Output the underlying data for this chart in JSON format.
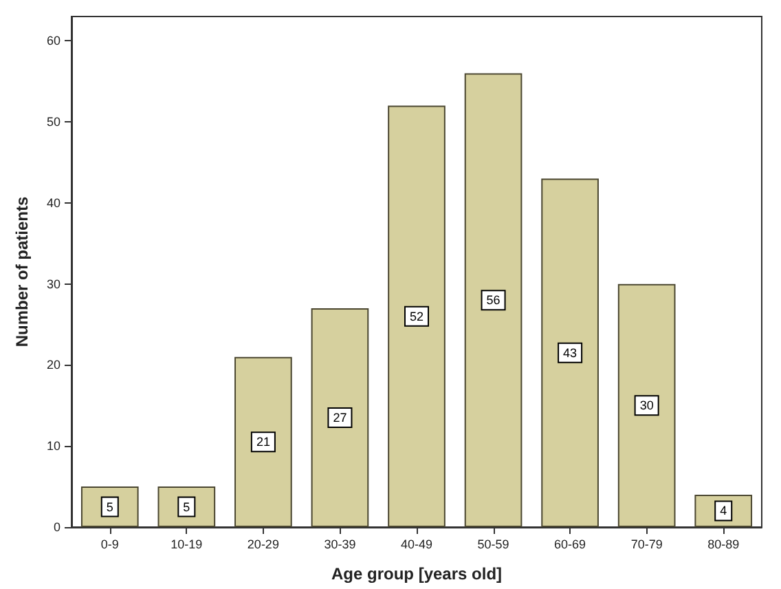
{
  "chart_data": {
    "type": "bar",
    "xlabel": "Age group [years old]",
    "ylabel": "Number of patients",
    "categories": [
      "0-9",
      "10-19",
      "20-29",
      "30-39",
      "40-49",
      "50-59",
      "60-69",
      "70-79",
      "80-89"
    ],
    "values": [
      5,
      5,
      21,
      27,
      52,
      56,
      43,
      30,
      4
    ],
    "color": "#d6d09e",
    "ylim": [
      0,
      63
    ],
    "yticks": [
      0,
      10,
      20,
      30,
      40,
      50,
      60
    ],
    "grid": false,
    "data_labels": true
  }
}
